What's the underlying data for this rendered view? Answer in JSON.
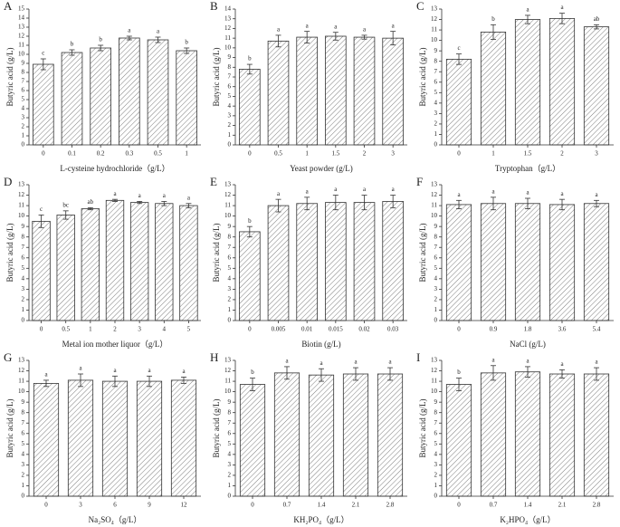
{
  "chart_data": [
    {
      "type": "bar",
      "label": "A",
      "xlabel": "L-cysteine hydrochloride（g/L）",
      "ylabel": "Butyric acid (g/L)",
      "color": "#333333",
      "categories": [
        "0",
        "0.1",
        "0.2",
        "0.3",
        "0.5",
        "1"
      ],
      "values": [
        8.9,
        10.2,
        10.7,
        11.8,
        11.6,
        10.4
      ],
      "errors": [
        0.6,
        0.3,
        0.3,
        0.2,
        0.3,
        0.3
      ],
      "annotations": [
        "c",
        "b",
        "b",
        "a",
        "a",
        "b"
      ],
      "ylim": [
        0,
        15
      ],
      "yticks": [
        0,
        1,
        2,
        3,
        4,
        5,
        6,
        7,
        8,
        9,
        10,
        11,
        12,
        13,
        14,
        15
      ]
    },
    {
      "type": "bar",
      "label": "B",
      "xlabel": "Yeast powder (g/L)",
      "ylabel": "Butyric acid (g/L)",
      "color": "#333333",
      "categories": [
        "0",
        "0.5",
        "1",
        "1.5",
        "2",
        "3"
      ],
      "values": [
        7.8,
        10.7,
        11.1,
        11.2,
        11.1,
        11.0
      ],
      "errors": [
        0.5,
        0.6,
        0.6,
        0.4,
        0.2,
        0.7
      ],
      "annotations": [
        "b",
        "a",
        "a",
        "a",
        "a",
        "a"
      ],
      "ylim": [
        0,
        14
      ],
      "yticks": [
        0,
        1,
        2,
        3,
        4,
        5,
        6,
        7,
        8,
        9,
        10,
        11,
        12,
        13,
        14
      ]
    },
    {
      "type": "bar",
      "label": "C",
      "xlabel": "Tryptophan（g/L）",
      "ylabel": "Butyric acid (g/L)",
      "color": "#333333",
      "categories": [
        "0",
        "1",
        "1.5",
        "2",
        "3"
      ],
      "values": [
        8.2,
        10.8,
        12.0,
        12.1,
        11.3
      ],
      "errors": [
        0.5,
        0.7,
        0.4,
        0.5,
        0.2
      ],
      "annotations": [
        "c",
        "b",
        "a",
        "a",
        "ab"
      ],
      "ylim": [
        0,
        13
      ],
      "yticks": [
        0,
        1,
        2,
        3,
        4,
        5,
        6,
        7,
        8,
        9,
        10,
        11,
        12,
        13
      ]
    },
    {
      "type": "bar",
      "label": "D",
      "xlabel": "Metal ion mother liquor（g/L）",
      "ylabel": "Butyric acid (g/L)",
      "color": "#333333",
      "categories": [
        "0",
        "0.5",
        "1",
        "2",
        "3",
        "4",
        "5"
      ],
      "values": [
        9.5,
        10.1,
        10.7,
        11.5,
        11.3,
        11.2,
        11.0
      ],
      "errors": [
        0.6,
        0.4,
        0.1,
        0.1,
        0.1,
        0.2,
        0.2
      ],
      "annotations": [
        "c",
        "bc",
        "ab",
        "a",
        "a",
        "a",
        "a"
      ],
      "ylim": [
        0,
        13
      ],
      "yticks": [
        0,
        1,
        2,
        3,
        4,
        5,
        6,
        7,
        8,
        9,
        10,
        11,
        12,
        13
      ]
    },
    {
      "type": "bar",
      "label": "E",
      "xlabel": "Biotin (g/L)",
      "ylabel": "Butyric acid (g/L)",
      "color": "#333333",
      "categories": [
        "0",
        "0.005",
        "0.01",
        "0.015",
        "0.02",
        "0.03"
      ],
      "values": [
        8.5,
        11.0,
        11.2,
        11.3,
        11.3,
        11.4
      ],
      "errors": [
        0.5,
        0.6,
        0.6,
        0.7,
        0.7,
        0.6
      ],
      "annotations": [
        "b",
        "a",
        "a",
        "a",
        "a",
        "a"
      ],
      "ylim": [
        0,
        13
      ],
      "yticks": [
        0,
        1,
        2,
        3,
        4,
        5,
        6,
        7,
        8,
        9,
        10,
        11,
        12,
        13
      ]
    },
    {
      "type": "bar",
      "label": "F",
      "xlabel": "NaCl (g/L)",
      "ylabel": "Butyric acid (g/L)",
      "color": "#333333",
      "categories": [
        "0",
        "0.9",
        "1.8",
        "3.6",
        "5.4"
      ],
      "values": [
        11.1,
        11.2,
        11.2,
        11.1,
        11.2
      ],
      "errors": [
        0.4,
        0.6,
        0.5,
        0.5,
        0.3
      ],
      "annotations": [
        "a",
        "a",
        "a",
        "a",
        "a"
      ],
      "ylim": [
        0,
        13
      ],
      "yticks": [
        0,
        1,
        2,
        3,
        4,
        5,
        6,
        7,
        8,
        9,
        10,
        11,
        12,
        13
      ]
    },
    {
      "type": "bar",
      "label": "G",
      "xlabel": "Na₂SO₄（g/L）",
      "ylabel": "Butyric acid (g/L)",
      "color": "#333333",
      "categories": [
        "0",
        "3",
        "6",
        "9",
        "12"
      ],
      "values": [
        10.8,
        11.1,
        11.0,
        11.0,
        11.1
      ],
      "errors": [
        0.3,
        0.6,
        0.5,
        0.5,
        0.3
      ],
      "annotations": [
        "a",
        "a",
        "a",
        "a",
        "a"
      ],
      "ylim": [
        0,
        13
      ],
      "yticks": [
        0,
        1,
        2,
        3,
        4,
        5,
        6,
        7,
        8,
        9,
        10,
        11,
        12,
        13
      ]
    },
    {
      "type": "bar",
      "label": "H",
      "xlabel": "KH₂PO₄（g/L）",
      "ylabel": "Butyric acid (g/L)",
      "color": "#333333",
      "categories": [
        "0",
        "0.7",
        "1.4",
        "2.1",
        "2.8"
      ],
      "values": [
        10.7,
        11.8,
        11.6,
        11.7,
        11.7
      ],
      "errors": [
        0.6,
        0.6,
        0.6,
        0.6,
        0.6
      ],
      "annotations": [
        "b",
        "a",
        "a",
        "a",
        "a"
      ],
      "ylim": [
        0,
        13
      ],
      "yticks": [
        0,
        1,
        2,
        3,
        4,
        5,
        6,
        7,
        8,
        9,
        10,
        11,
        12,
        13
      ]
    },
    {
      "type": "bar",
      "label": "I",
      "xlabel": "K₂HPO₄（g/L）",
      "ylabel": "Butyric acid (g/L)",
      "color": "#333333",
      "categories": [
        "0",
        "0.7",
        "1.4",
        "2.1",
        "2.8"
      ],
      "values": [
        10.7,
        11.8,
        11.9,
        11.7,
        11.7
      ],
      "errors": [
        0.6,
        0.7,
        0.5,
        0.4,
        0.6
      ],
      "annotations": [
        "b",
        "a",
        "a",
        "a",
        "a"
      ],
      "ylim": [
        0,
        13
      ],
      "yticks": [
        0,
        1,
        2,
        3,
        4,
        5,
        6,
        7,
        8,
        9,
        10,
        11,
        12,
        13
      ]
    }
  ]
}
